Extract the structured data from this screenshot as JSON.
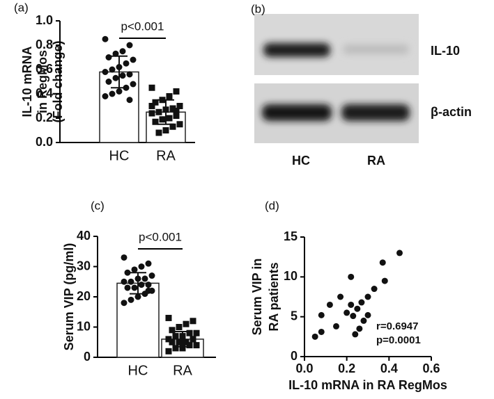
{
  "chart_data": [
    {
      "type": "bardot",
      "panel_label": "(a)",
      "ylabel": [
        "IL-10 mRNA",
        "in RegMos",
        "(Fold change)"
      ],
      "categories": [
        "HC",
        "RA"
      ],
      "values": [
        0.58,
        0.25
      ],
      "errors": [
        0.13,
        0.1
      ],
      "markers": [
        "circle",
        "square"
      ],
      "points": [
        [
          0.85,
          0.8,
          0.75,
          0.73,
          0.7,
          0.68,
          0.65,
          0.62,
          0.6,
          0.58,
          0.56,
          0.55,
          0.53,
          0.5,
          0.48,
          0.45,
          0.42,
          0.4,
          0.38,
          0.35
        ],
        [
          0.45,
          0.42,
          0.38,
          0.35,
          0.33,
          0.3,
          0.28,
          0.27,
          0.25,
          0.24,
          0.22,
          0.2,
          0.19,
          0.17,
          0.15,
          0.13,
          0.1,
          0.08,
          0.3,
          0.26
        ]
      ],
      "annotation": "p<0.001",
      "ylim": [
        0,
        1
      ],
      "yticks": [
        {
          "value": 0,
          "label": "0.0"
        },
        0.2,
        0.4,
        0.6,
        0.8,
        {
          "value": 1,
          "label": "1.0"
        }
      ]
    },
    {
      "type": "bardot",
      "panel_label": "(c)",
      "ylabel": [
        "Serum VIP (pg/ml)"
      ],
      "categories": [
        "HC",
        "RA"
      ],
      "values": [
        24.5,
        6
      ],
      "errors": [
        3.5,
        2.5
      ],
      "markers": [
        "circle",
        "square"
      ],
      "points": [
        [
          33,
          31,
          30,
          29,
          28,
          27,
          26,
          26,
          25,
          25,
          24,
          24,
          23,
          23,
          22,
          21,
          20,
          19,
          18,
          22
        ],
        [
          13,
          12,
          11,
          10,
          9,
          8,
          8,
          7,
          7,
          6,
          6,
          5,
          5,
          5,
          4,
          4,
          3,
          3,
          2,
          6
        ]
      ],
      "annotation": "p<0.001",
      "ylim": [
        0,
        40
      ],
      "yticks": [
        0,
        10,
        20,
        30,
        40
      ]
    },
    {
      "type": "scatter",
      "panel_label": "(d)",
      "ylabel": [
        "Serum VIP in",
        "RA patients"
      ],
      "xlabel": "IL-10 mRNA in RA RegMos",
      "x": [
        0.05,
        0.08,
        0.08,
        0.12,
        0.15,
        0.17,
        0.2,
        0.22,
        0.22,
        0.23,
        0.24,
        0.25,
        0.26,
        0.27,
        0.28,
        0.3,
        0.3,
        0.33,
        0.37,
        0.38,
        0.45
      ],
      "values": [
        2.5,
        3.1,
        5.2,
        6.5,
        3.8,
        7.5,
        5.5,
        10,
        6.5,
        5.1,
        2.8,
        6,
        3.5,
        6.8,
        4.5,
        5.2,
        7.5,
        8.5,
        11.8,
        9.5,
        13
      ],
      "annotations": [
        "r=0.6947",
        "p=0.0001"
      ],
      "xlim": [
        0,
        0.6
      ],
      "xticks": [
        {
          "value": 0,
          "label": "0.0"
        },
        0.2,
        0.4,
        0.6
      ],
      "ylim": [
        0,
        15
      ],
      "yticks": [
        0,
        5,
        10,
        15
      ]
    }
  ],
  "blot": {
    "panel_label": "(b)",
    "rows": [
      "IL-10",
      "β-actin"
    ],
    "lanes": [
      "HC",
      "RA"
    ]
  }
}
